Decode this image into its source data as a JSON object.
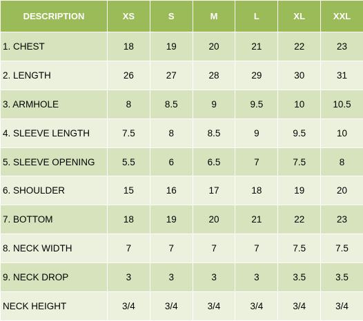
{
  "table": {
    "headers": [
      "DESCRIPTION",
      "XS",
      "S",
      "M",
      "L",
      "XL",
      "XXL"
    ],
    "rows": [
      [
        "1. CHEST",
        "18",
        "19",
        "20",
        "21",
        "22",
        "23"
      ],
      [
        "2. LENGTH",
        "26",
        "27",
        "28",
        "29",
        "30",
        "31"
      ],
      [
        "3. ARMHOLE",
        "8",
        "8.5",
        "9",
        "9.5",
        "10",
        "10.5"
      ],
      [
        "4. SLEEVE LENGTH",
        "7.5",
        "8",
        "8.5",
        "9",
        "9.5",
        "10"
      ],
      [
        "5. SLEEVE OPENING",
        "5.5",
        "6",
        "6.5",
        "7",
        "7.5",
        "8"
      ],
      [
        "6. SHOULDER",
        "15",
        "16",
        "17",
        "18",
        "19",
        "20"
      ],
      [
        "7. BOTTOM",
        "18",
        "19",
        "20",
        "21",
        "22",
        "23"
      ],
      [
        "8. NECK WIDTH",
        "7",
        "7",
        "7",
        "7",
        "7.5",
        "7.5"
      ],
      [
        "9. NECK DROP",
        "3",
        "3",
        "3",
        "3",
        "3.5",
        "3.5"
      ],
      [
        "NECK HEIGHT",
        "3/4",
        "3/4",
        "3/4",
        "3/4",
        "3/4",
        "3/4"
      ]
    ]
  },
  "colors": {
    "header_bg": "#9bbb59",
    "header_text": "#ffffff",
    "row_odd_bg": "#d6e3bc",
    "row_even_bg": "#ebf1dd",
    "border": "#ffffff"
  }
}
